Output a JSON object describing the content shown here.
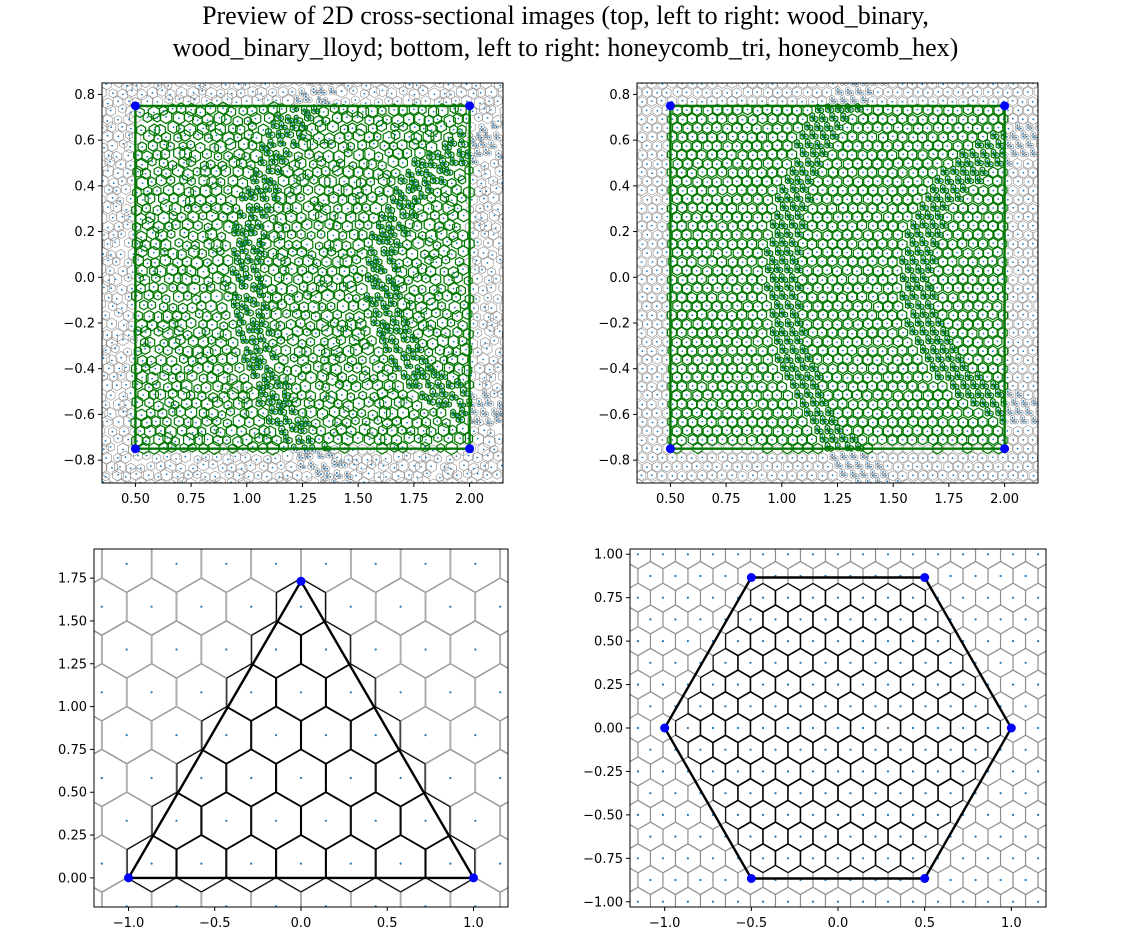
{
  "figure": {
    "title_line1": "Preview of 2D cross-sectional images (top, left to right: wood_binary,",
    "title_line2": "wood_binary_lloyd; bottom, left to right: honeycomb_tri, honeycomb_hex)"
  },
  "chart_data": [
    {
      "name": "wood_binary",
      "type": "scatter",
      "title": "",
      "xlabel": "",
      "ylabel": "",
      "xlim": [
        0.35,
        2.15
      ],
      "ylim": [
        -0.9,
        0.85
      ],
      "xticks": [
        0.5,
        0.75,
        1.0,
        1.25,
        1.5,
        1.75,
        2.0
      ],
      "xtick_labels": [
        "0.50",
        "0.75",
        "1.00",
        "1.25",
        "1.50",
        "1.75",
        "2.00"
      ],
      "yticks": [
        0.8,
        0.6,
        0.4,
        0.2,
        0.0,
        -0.2,
        -0.4,
        -0.6,
        -0.8
      ],
      "ytick_labels": [
        "0.8",
        "0.6",
        "0.4",
        "0.2",
        "0.0",
        "−0.2",
        "−0.4",
        "−0.6",
        "−0.8"
      ],
      "boundary_points": [
        [
          0.5,
          0.75
        ],
        [
          2.0,
          0.75
        ],
        [
          2.0,
          -0.75
        ],
        [
          0.5,
          -0.75
        ]
      ],
      "boundary_color": "#007700",
      "seed_pattern": "random",
      "dense_bands": [
        {
          "center_x": 2.2,
          "center_y": 0.0,
          "radius": 1.2,
          "half_width": 0.045
        },
        {
          "center_x": 2.2,
          "center_y": 0.0,
          "radius": 0.6,
          "half_width": 0.045
        }
      ]
    },
    {
      "name": "wood_binary_lloyd",
      "type": "scatter",
      "title": "",
      "xlabel": "",
      "ylabel": "",
      "xlim": [
        0.35,
        2.15
      ],
      "ylim": [
        -0.9,
        0.85
      ],
      "xticks": [
        0.5,
        0.75,
        1.0,
        1.25,
        1.5,
        1.75,
        2.0
      ],
      "xtick_labels": [
        "0.50",
        "0.75",
        "1.00",
        "1.25",
        "1.50",
        "1.75",
        "2.00"
      ],
      "yticks": [
        0.8,
        0.6,
        0.4,
        0.2,
        0.0,
        -0.2,
        -0.4,
        -0.6,
        -0.8
      ],
      "ytick_labels": [
        "0.8",
        "0.6",
        "0.4",
        "0.2",
        "0.0",
        "−0.2",
        "−0.4",
        "−0.6",
        "−0.8"
      ],
      "boundary_points": [
        [
          0.5,
          0.75
        ],
        [
          2.0,
          0.75
        ],
        [
          2.0,
          -0.75
        ],
        [
          0.5,
          -0.75
        ]
      ],
      "boundary_color": "#007700",
      "seed_pattern": "regular",
      "dense_bands": [
        {
          "center_x": 2.2,
          "center_y": 0.0,
          "radius": 1.2,
          "half_width": 0.045
        },
        {
          "center_x": 2.2,
          "center_y": 0.0,
          "radius": 0.6,
          "half_width": 0.045
        }
      ]
    },
    {
      "name": "honeycomb_tri",
      "type": "scatter",
      "title": "",
      "xlabel": "",
      "ylabel": "",
      "xlim": [
        -1.2,
        1.2
      ],
      "ylim": [
        -0.17,
        1.92
      ],
      "xticks": [
        -1.0,
        -0.5,
        0.0,
        0.5,
        1.0
      ],
      "xtick_labels": [
        "−1.0",
        "−0.5",
        "0.0",
        "0.5",
        "1.0"
      ],
      "yticks": [
        1.75,
        1.5,
        1.25,
        1.0,
        0.75,
        0.5,
        0.25,
        0.0
      ],
      "ytick_labels": [
        "1.75",
        "1.50",
        "1.25",
        "1.00",
        "0.75",
        "0.50",
        "0.25",
        "0.00"
      ],
      "boundary_points": [
        [
          -1.0,
          0.0
        ],
        [
          1.0,
          0.0
        ],
        [
          0.0,
          1.732
        ]
      ],
      "boundary_color": "#000000",
      "lattice_spacing": 0.2887,
      "lattice_offset": [
        0.0,
        0.0833
      ]
    },
    {
      "name": "honeycomb_hex",
      "type": "scatter",
      "title": "",
      "xlabel": "",
      "ylabel": "",
      "xlim": [
        -1.2,
        1.2
      ],
      "ylim": [
        -1.03,
        1.03
      ],
      "xticks": [
        -1.0,
        -0.5,
        0.0,
        0.5,
        1.0
      ],
      "xtick_labels": [
        "−1.0",
        "−0.5",
        "0.0",
        "0.5",
        "1.0"
      ],
      "yticks": [
        1.0,
        0.75,
        0.5,
        0.25,
        0.0,
        -0.25,
        -0.5,
        -0.75,
        -1.0
      ],
      "ytick_labels": [
        "1.00",
        "0.75",
        "0.50",
        "0.25",
        "0.00",
        "−0.25",
        "−0.50",
        "−0.75",
        "−1.00"
      ],
      "boundary_points": [
        [
          1.0,
          0.0
        ],
        [
          0.5,
          0.866
        ],
        [
          -0.5,
          0.866
        ],
        [
          -1.0,
          0.0
        ],
        [
          -0.5,
          -0.866
        ],
        [
          0.5,
          -0.866
        ]
      ],
      "boundary_color": "#000000",
      "lattice_spacing": 0.1443,
      "lattice_offset": [
        0.0,
        0.0
      ]
    }
  ],
  "colors": {
    "seed": "#1f77b4",
    "outer_edge": "#8c8c8c",
    "vertex": "#0000ff"
  }
}
